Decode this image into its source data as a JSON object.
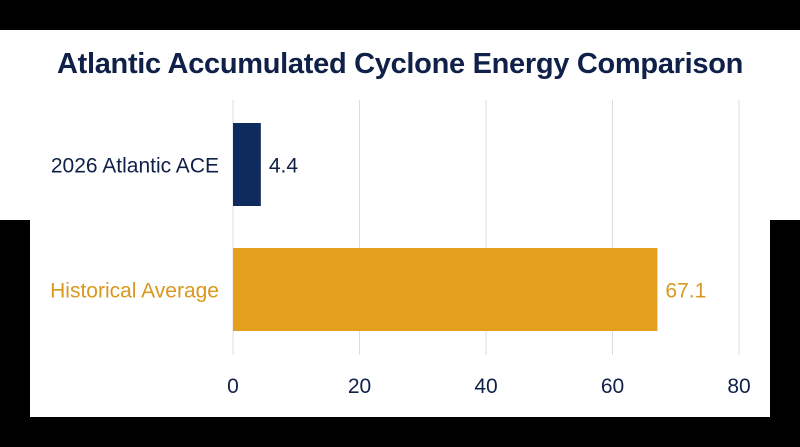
{
  "chart_data": {
    "type": "bar",
    "orientation": "horizontal",
    "title": "Atlantic Accumulated Cyclone Energy Comparison",
    "categories": [
      "2026 Atlantic ACE",
      "Historical Average"
    ],
    "values": [
      4.4,
      67.1
    ],
    "value_labels": [
      "4.4",
      "67.1"
    ],
    "colors": [
      "#0f2a5c",
      "#e49f1e"
    ],
    "label_colors": [
      "#0f2148",
      "#d9981f"
    ],
    "xlim": [
      0,
      80
    ],
    "xticks": [
      0,
      20,
      40,
      60,
      80
    ],
    "xtick_labels": [
      "0",
      "20",
      "40",
      "60",
      "80"
    ],
    "grid": true,
    "axis_color": "#0f2148"
  }
}
